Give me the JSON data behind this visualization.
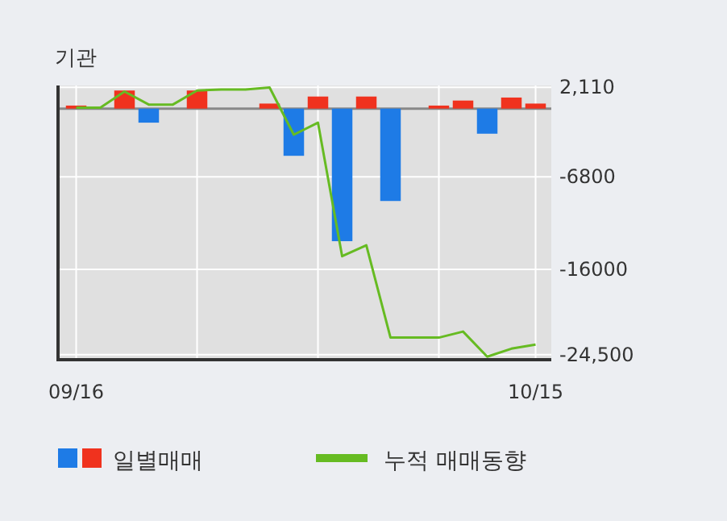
{
  "chart_data": {
    "type": "bar",
    "title": "기관",
    "categories": [
      "09/16",
      null,
      null,
      null,
      null,
      null,
      null,
      null,
      null,
      null,
      null,
      null,
      null,
      null,
      null,
      null,
      null,
      null,
      null,
      "10/15"
    ],
    "series": [
      {
        "name": "일별매매",
        "values": [
          300,
          null,
          1800,
          -1400,
          null,
          1800,
          null,
          null,
          500,
          -4700,
          1200,
          -13200,
          1200,
          -9200,
          null,
          300,
          800,
          -2500,
          1100,
          500
        ],
        "colors": [
          "#f0321e",
          null,
          "#f0321e",
          "#1e7be6",
          null,
          "#f0321e",
          null,
          null,
          "#f0321e",
          "#1e7be6",
          "#f0321e",
          "#1e7be6",
          "#f0321e",
          "#1e7be6",
          null,
          "#f0321e",
          "#f0321e",
          "#1e7be6",
          "#f0321e",
          "#f0321e"
        ]
      },
      {
        "name": "누적 매매동향",
        "type": "line",
        "color": "#66bb22",
        "values": [
          100,
          100,
          1700,
          400,
          400,
          1800,
          1900,
          1900,
          2100,
          -2600,
          -1400,
          -14700,
          -13600,
          -22800,
          -22800,
          -22800,
          -22200,
          -24700,
          -23900,
          -23500
        ]
      }
    ],
    "ylim": [
      -25000,
      2300
    ],
    "yticks": [
      {
        "value": 2110,
        "label": "2,110"
      },
      {
        "value": -6800,
        "label": "-6800"
      },
      {
        "value": -16000,
        "label": "-16000"
      },
      {
        "value": -24500,
        "label": "-24,500"
      }
    ],
    "grid": true,
    "legend": "bottom"
  }
}
